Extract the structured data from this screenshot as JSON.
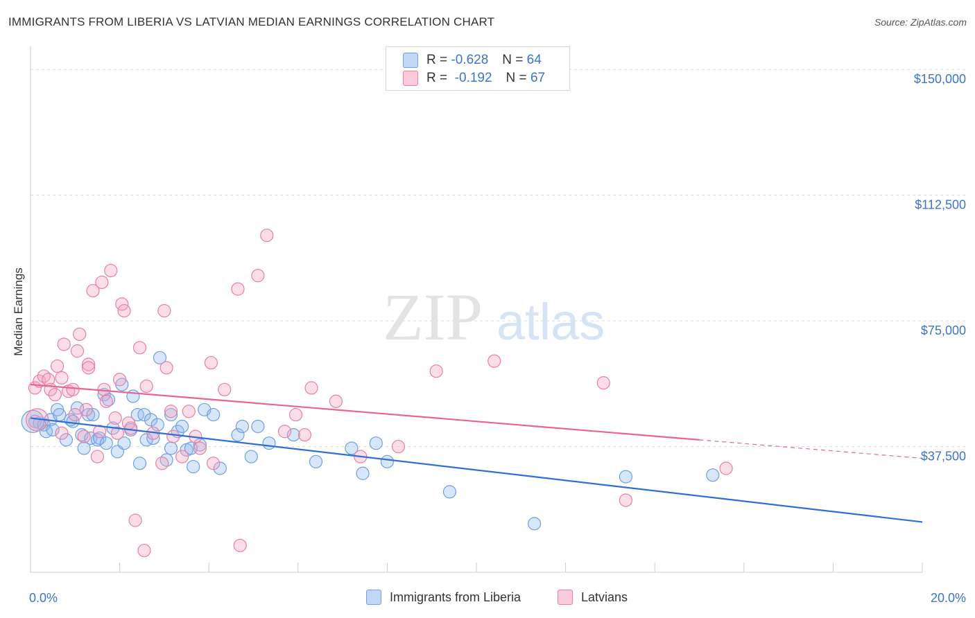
{
  "header": {
    "title": "IMMIGRANTS FROM LIBERIA VS LATVIAN MEDIAN EARNINGS CORRELATION CHART",
    "source": "Source: ZipAtlas.com"
  },
  "watermark": {
    "zip": "ZIP",
    "atlas": "atlas"
  },
  "legend": {
    "r_label": "R =",
    "n_label": "N =",
    "rows": [
      {
        "r": "-0.628",
        "n": "64"
      },
      {
        "r": "-0.192",
        "n": "67"
      }
    ]
  },
  "chart_data": {
    "type": "scatter",
    "ylabel": "Median Earnings",
    "xlim": [
      0,
      20
    ],
    "ylim": [
      0,
      155000
    ],
    "y_ticks": [
      {
        "value": 150000,
        "label": "$150,000"
      },
      {
        "value": 112500,
        "label": "$112,500"
      },
      {
        "value": 75000,
        "label": "$75,000"
      },
      {
        "value": 37500,
        "label": "$37,500"
      }
    ],
    "x_tick_labels": {
      "min": "0.0%",
      "max": "20.0%"
    },
    "series": [
      {
        "name": "Immigrants from Liberia",
        "color": "#6f9fe0",
        "fill": "rgba(143,182,237,0.35)",
        "line_color": "#2c6fd6",
        "trend": {
          "x0": 0,
          "y0": 46000,
          "x1": 20,
          "y1": 15000
        },
        "points": [
          [
            0.1,
            45000
          ],
          [
            0.2,
            44500
          ],
          [
            0.3,
            44000
          ],
          [
            0.35,
            42000
          ],
          [
            0.45,
            45500
          ],
          [
            0.5,
            42500
          ],
          [
            0.6,
            48500
          ],
          [
            0.65,
            47000
          ],
          [
            0.8,
            39500
          ],
          [
            0.9,
            45500
          ],
          [
            0.95,
            45000
          ],
          [
            1.05,
            49000
          ],
          [
            1.15,
            41000
          ],
          [
            1.2,
            37000
          ],
          [
            1.3,
            47000
          ],
          [
            1.35,
            40000
          ],
          [
            1.4,
            47000
          ],
          [
            1.5,
            39500
          ],
          [
            1.55,
            40000
          ],
          [
            1.65,
            53000
          ],
          [
            1.7,
            38500
          ],
          [
            1.75,
            51500
          ],
          [
            1.85,
            43000
          ],
          [
            1.95,
            36000
          ],
          [
            2.05,
            56000
          ],
          [
            2.1,
            38500
          ],
          [
            2.25,
            42500
          ],
          [
            2.3,
            52500
          ],
          [
            2.4,
            47000
          ],
          [
            2.45,
            32500
          ],
          [
            2.55,
            47000
          ],
          [
            2.6,
            39500
          ],
          [
            2.7,
            45500
          ],
          [
            2.75,
            40000
          ],
          [
            2.85,
            44000
          ],
          [
            2.9,
            64000
          ],
          [
            3.05,
            33500
          ],
          [
            3.15,
            47000
          ],
          [
            3.15,
            37000
          ],
          [
            3.3,
            42000
          ],
          [
            3.4,
            43500
          ],
          [
            3.5,
            36500
          ],
          [
            3.6,
            37000
          ],
          [
            3.65,
            31500
          ],
          [
            3.8,
            38000
          ],
          [
            3.9,
            48500
          ],
          [
            4.1,
            47000
          ],
          [
            4.25,
            31000
          ],
          [
            4.65,
            41000
          ],
          [
            4.75,
            43500
          ],
          [
            4.95,
            34500
          ],
          [
            5.1,
            43500
          ],
          [
            5.35,
            38500
          ],
          [
            5.9,
            41000
          ],
          [
            6.4,
            33000
          ],
          [
            7.2,
            37000
          ],
          [
            7.45,
            29500
          ],
          [
            7.75,
            38500
          ],
          [
            8.0,
            33000
          ],
          [
            9.4,
            24000
          ],
          [
            11.3,
            14500
          ],
          [
            13.35,
            28500
          ],
          [
            15.3,
            29000
          ],
          [
            0.05,
            45000
          ]
        ]
      },
      {
        "name": "Latvians",
        "color": "#e87fa2",
        "fill": "rgba(245,160,190,0.35)",
        "line_color": "#e8658f",
        "trend": {
          "x0": 0,
          "y0": 56000,
          "x1": 15,
          "y1": 39500
        },
        "trend_dashed": {
          "x0": 15,
          "y0": 39500,
          "x1": 20,
          "y1": 34000
        },
        "points": [
          [
            0.1,
            55000
          ],
          [
            0.2,
            57000
          ],
          [
            0.3,
            58500
          ],
          [
            0.4,
            57500
          ],
          [
            0.45,
            54500
          ],
          [
            0.55,
            53000
          ],
          [
            0.6,
            61500
          ],
          [
            0.7,
            58000
          ],
          [
            0.7,
            41500
          ],
          [
            0.75,
            68000
          ],
          [
            0.85,
            54000
          ],
          [
            0.95,
            54500
          ],
          [
            1.0,
            47000
          ],
          [
            1.05,
            66000
          ],
          [
            1.1,
            71000
          ],
          [
            1.2,
            40500
          ],
          [
            1.25,
            48500
          ],
          [
            1.3,
            62000
          ],
          [
            1.3,
            61000
          ],
          [
            1.4,
            84000
          ],
          [
            1.5,
            34500
          ],
          [
            1.55,
            42000
          ],
          [
            1.6,
            86500
          ],
          [
            1.65,
            54500
          ],
          [
            1.7,
            51000
          ],
          [
            1.8,
            90000
          ],
          [
            1.9,
            46000
          ],
          [
            1.95,
            41500
          ],
          [
            2.0,
            57500
          ],
          [
            2.05,
            80000
          ],
          [
            2.1,
            78000
          ],
          [
            2.2,
            44500
          ],
          [
            2.25,
            43000
          ],
          [
            2.35,
            15500
          ],
          [
            2.45,
            67000
          ],
          [
            2.55,
            6500
          ],
          [
            2.6,
            55500
          ],
          [
            2.75,
            41500
          ],
          [
            2.95,
            32500
          ],
          [
            3.0,
            78000
          ],
          [
            3.05,
            61000
          ],
          [
            3.15,
            48000
          ],
          [
            3.2,
            40500
          ],
          [
            3.4,
            34500
          ],
          [
            3.55,
            48000
          ],
          [
            3.7,
            40500
          ],
          [
            3.8,
            37000
          ],
          [
            4.05,
            62500
          ],
          [
            4.1,
            32500
          ],
          [
            4.35,
            54500
          ],
          [
            4.65,
            84500
          ],
          [
            4.7,
            8000
          ],
          [
            5.1,
            88500
          ],
          [
            5.3,
            100500
          ],
          [
            5.7,
            42000
          ],
          [
            5.95,
            47000
          ],
          [
            6.15,
            41000
          ],
          [
            6.3,
            55000
          ],
          [
            6.85,
            51000
          ],
          [
            7.4,
            34500
          ],
          [
            8.25,
            37500
          ],
          [
            9.1,
            60000
          ],
          [
            10.4,
            63000
          ],
          [
            12.85,
            56500
          ],
          [
            13.35,
            21500
          ],
          [
            15.6,
            31000
          ],
          [
            0.15,
            45500
          ]
        ]
      }
    ]
  }
}
